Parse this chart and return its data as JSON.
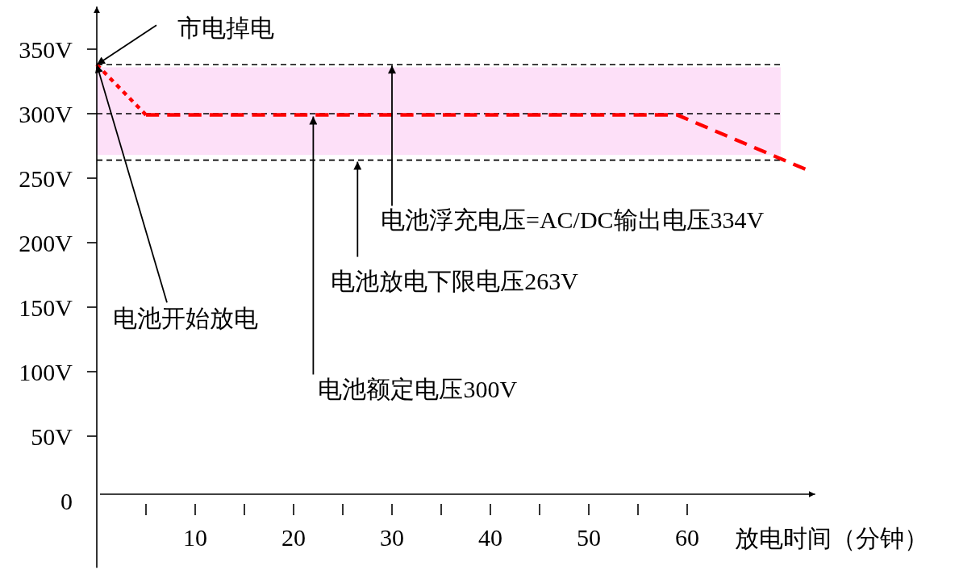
{
  "chart_data": {
    "type": "line",
    "xlabel": "放电时间（分钟）",
    "xlim": [
      0,
      73
    ],
    "ylim": [
      -52,
      383
    ],
    "xticks": [
      {
        "value": 5,
        "label": null
      },
      10,
      {
        "value": 15,
        "label": null
      },
      20,
      {
        "value": 25,
        "label": null
      },
      30,
      {
        "value": 35,
        "label": null
      },
      40,
      {
        "value": 45,
        "label": null
      },
      50,
      {
        "value": 55,
        "label": null
      },
      60
    ],
    "yticks": [
      0,
      {
        "value": 50,
        "label": "50V"
      },
      {
        "value": 100,
        "label": "100V"
      },
      {
        "value": 150,
        "label": "150V"
      },
      {
        "value": 200,
        "label": "200V"
      },
      {
        "value": 250,
        "label": "250V"
      },
      {
        "value": 300,
        "label": "300V"
      },
      {
        "value": 350,
        "label": "350V"
      }
    ],
    "series": [
      {
        "color": "#ff0000",
        "line_style": "dotted",
        "x": [
          0,
          5
        ],
        "values": [
          338,
          299
        ]
      },
      {
        "color": "#ff0000",
        "line_style": "dashed",
        "x": [
          5,
          59,
          72
        ],
        "values": [
          299,
          299,
          257
        ]
      }
    ],
    "ref_lines": [
      {
        "axis": "y",
        "value": 338,
        "color": "#000000",
        "line_style": "dashed"
      },
      {
        "axis": "y",
        "value": 300,
        "color": "#000000",
        "line_style": "dashed"
      },
      {
        "axis": "y",
        "value": 264,
        "color": "#000000",
        "line_style": "dashed"
      }
    ],
    "bands": [
      {
        "axis": "y",
        "from": 268,
        "to": 336,
        "color": "#fde0f8"
      }
    ],
    "annotations": [
      {
        "text": "市电掉电",
        "x": 0,
        "y": 338
      },
      {
        "text": "电池开始放电",
        "x": 0,
        "y": 338
      },
      {
        "text": "电池额定电压300V",
        "x": 22,
        "y": 299
      },
      {
        "text": "电池放电下限电压263V",
        "x": 26.5,
        "y": 264
      },
      {
        "text": "电池浮充电压=AC/DC输出电压334V",
        "x": 30,
        "y": 338
      }
    ],
    "marker": "none"
  }
}
